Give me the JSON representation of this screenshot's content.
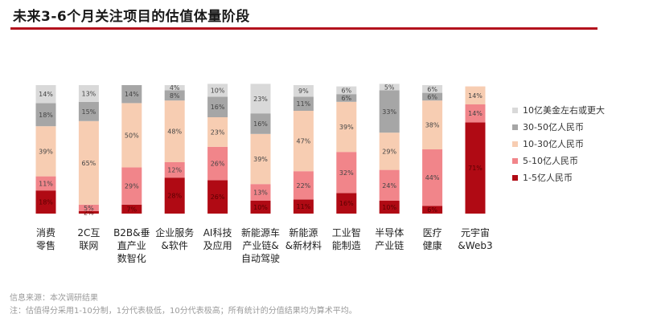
{
  "header": {
    "title": "未来3-6个月关注项目的估值体量阶段"
  },
  "chart_data": {
    "type": "bar",
    "stacked": true,
    "normalized": true,
    "categories": [
      [
        "消费",
        "零售"
      ],
      [
        "2C互",
        "联网"
      ],
      [
        "B2B&垂",
        "直产业",
        "数智化"
      ],
      [
        "企业服务",
        "&软件"
      ],
      [
        "AI科技",
        "及应用"
      ],
      [
        "新能源车",
        "产业链&",
        "自动驾驶"
      ],
      [
        "新能源",
        "&新材料"
      ],
      [
        "工业智",
        "能制造"
      ],
      [
        "半导体",
        "产业链"
      ],
      [
        "医疗",
        "健康"
      ],
      [
        "元宇宙",
        "&Web3"
      ]
    ],
    "series": [
      {
        "name": "1-5亿人民币",
        "color": "#b00a14",
        "values": [
          18,
          2,
          7,
          28,
          26,
          10,
          11,
          16,
          10,
          6,
          71
        ]
      },
      {
        "name": "5-10亿人民币",
        "color": "#f1858a",
        "values": [
          11,
          5,
          29,
          12,
          26,
          13,
          22,
          32,
          24,
          44,
          14
        ]
      },
      {
        "name": "10-30亿人民币",
        "color": "#f7cdb2",
        "values": [
          39,
          65,
          50,
          48,
          23,
          39,
          47,
          39,
          29,
          38,
          14
        ]
      },
      {
        "name": "30-50亿人民币",
        "color": "#a6a6a6",
        "values": [
          18,
          15,
          14,
          8,
          16,
          16,
          11,
          6,
          33,
          6,
          0
        ]
      },
      {
        "name": "10亿美金左右或更大",
        "color": "#d9d9d9",
        "values": [
          14,
          13,
          0,
          4,
          10,
          23,
          9,
          6,
          5,
          6,
          0
        ]
      }
    ],
    "bar_labels": [
      [
        "18%",
        "11%",
        "39%",
        "18%",
        "14%"
      ],
      [
        "2%",
        "5%",
        "65%",
        "15%",
        "13%"
      ],
      [
        "7%",
        "29%",
        "50%",
        "14%",
        ""
      ],
      [
        "28%",
        "12%",
        "48%",
        "8%",
        "4%"
      ],
      [
        "26%",
        "26%",
        "23%",
        "16%",
        "10%"
      ],
      [
        "10%",
        "13%",
        "39%",
        "16%",
        "23%"
      ],
      [
        "11%",
        "22%",
        "47%",
        "11%",
        "9%"
      ],
      [
        "16%",
        "32%",
        "39%",
        "6%",
        "6%"
      ],
      [
        "10%",
        "24%",
        "29%",
        "33%",
        "5%"
      ],
      [
        "6%",
        "44%",
        "38%",
        "6%",
        "6%"
      ],
      [
        "71%",
        "14%",
        "14%",
        "",
        ""
      ]
    ],
    "legend_position": "right",
    "ylim": [
      0,
      100
    ]
  },
  "footnotes": [
    "信息来源：本次调研结果",
    "注：估值得分采用1-10分制，1分代表极低，10分代表极高；所有统计的分值结果均为算术平均。"
  ]
}
